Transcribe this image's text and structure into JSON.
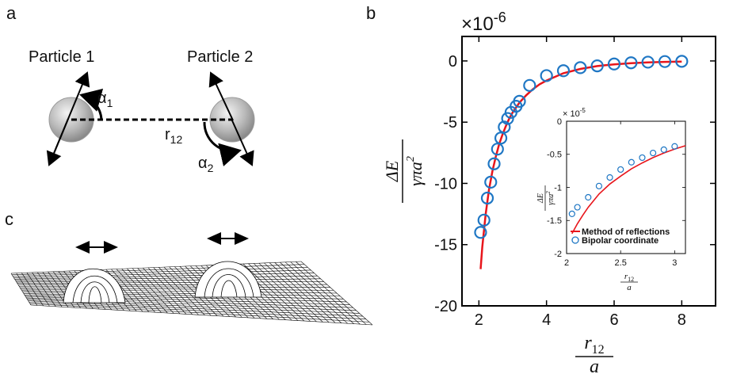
{
  "panels": {
    "a": "a",
    "b": "b",
    "c": "c"
  },
  "panel_a": {
    "particle1": "Particle 1",
    "particle2": "Particle 2",
    "alpha1": "α",
    "alpha1_sub": "1",
    "alpha2": "α",
    "alpha2_sub": "2",
    "r": "r",
    "r_sub": "12"
  },
  "chart_data": [
    {
      "type": "scatter",
      "exponent_label": "×10",
      "exponent_power": "-6",
      "xlim": [
        1.5,
        9.0
      ],
      "ylim": [
        -20,
        2
      ],
      "xticks": [
        "2",
        "4",
        "6",
        "8"
      ],
      "yticks": [
        "0",
        "-5",
        "-10",
        "-15",
        "-20"
      ],
      "xlabel_num": "r",
      "xlabel_sub": "12",
      "xlabel_den": "a",
      "ylabel_num": "ΔE",
      "ylabel_den": "γπa",
      "ylabel_den_sup": "2",
      "series": [
        {
          "style": "circles",
          "color": "#1f77c4",
          "x": [
            2.05,
            2.15,
            2.25,
            2.35,
            2.45,
            2.55,
            2.65,
            2.75,
            2.85,
            2.95,
            3.1,
            3.2,
            3.5,
            4.0,
            4.5,
            5.0,
            5.5,
            6.0,
            6.5,
            7.0,
            7.5,
            8.0
          ],
          "y": [
            -14.0,
            -13.0,
            -11.2,
            -9.9,
            -8.4,
            -7.2,
            -6.3,
            -5.4,
            -4.7,
            -4.2,
            -3.7,
            -3.3,
            -2.0,
            -1.2,
            -0.8,
            -0.55,
            -0.4,
            -0.25,
            -0.15,
            -0.1,
            -0.05,
            -0.03
          ]
        },
        {
          "style": "line",
          "color": "#e8151b",
          "x": [
            2.05,
            2.1,
            2.2,
            2.3,
            2.4,
            2.5,
            2.6,
            2.7,
            2.8,
            2.9,
            3.0,
            3.2,
            3.4,
            3.6,
            3.8,
            4.0,
            4.5,
            5.0,
            5.5,
            6.0,
            6.5,
            7.0,
            7.5,
            8.0
          ],
          "y": [
            -17.0,
            -15.2,
            -12.5,
            -10.5,
            -9.0,
            -7.8,
            -6.8,
            -6.0,
            -5.3,
            -4.7,
            -4.2,
            -3.4,
            -2.8,
            -2.3,
            -1.9,
            -1.6,
            -1.0,
            -0.65,
            -0.42,
            -0.28,
            -0.18,
            -0.12,
            -0.08,
            -0.05
          ]
        }
      ]
    },
    {
      "type": "scatter",
      "exponent_label": "× 10",
      "exponent_power": "-5",
      "xlim": [
        2.0,
        3.1
      ],
      "ylim": [
        -2.0,
        0.0
      ],
      "xticks": [
        "2",
        "2.5",
        "3"
      ],
      "yticks": [
        "0",
        "-0.5",
        "-1",
        "-1.5",
        "-2"
      ],
      "xlabel_num": "r",
      "xlabel_sub": "12",
      "xlabel_den": "a",
      "ylabel_num": "ΔE",
      "ylabel_den": "γπa",
      "ylabel_den_sup": "2",
      "legend": [
        "Method of reflections",
        "Bipolar coordinate"
      ],
      "legend_position": "bottom-left",
      "series": [
        {
          "name": "Method of reflections",
          "style": "line",
          "color": "#e8151b",
          "x": [
            2.05,
            2.1,
            2.15,
            2.2,
            2.3,
            2.4,
            2.5,
            2.6,
            2.7,
            2.8,
            2.9,
            3.0,
            3.1
          ],
          "y": [
            -1.7,
            -1.55,
            -1.42,
            -1.3,
            -1.1,
            -0.95,
            -0.83,
            -0.72,
            -0.63,
            -0.55,
            -0.48,
            -0.42,
            -0.37
          ]
        },
        {
          "name": "Bipolar coordinate",
          "style": "circles",
          "color": "#1f77c4",
          "x": [
            2.05,
            2.1,
            2.2,
            2.3,
            2.4,
            2.5,
            2.6,
            2.7,
            2.8,
            2.9,
            3.0
          ],
          "y": [
            -1.4,
            -1.3,
            -1.15,
            -0.98,
            -0.85,
            -0.73,
            -0.62,
            -0.55,
            -0.48,
            -0.43,
            -0.38
          ]
        }
      ]
    }
  ]
}
